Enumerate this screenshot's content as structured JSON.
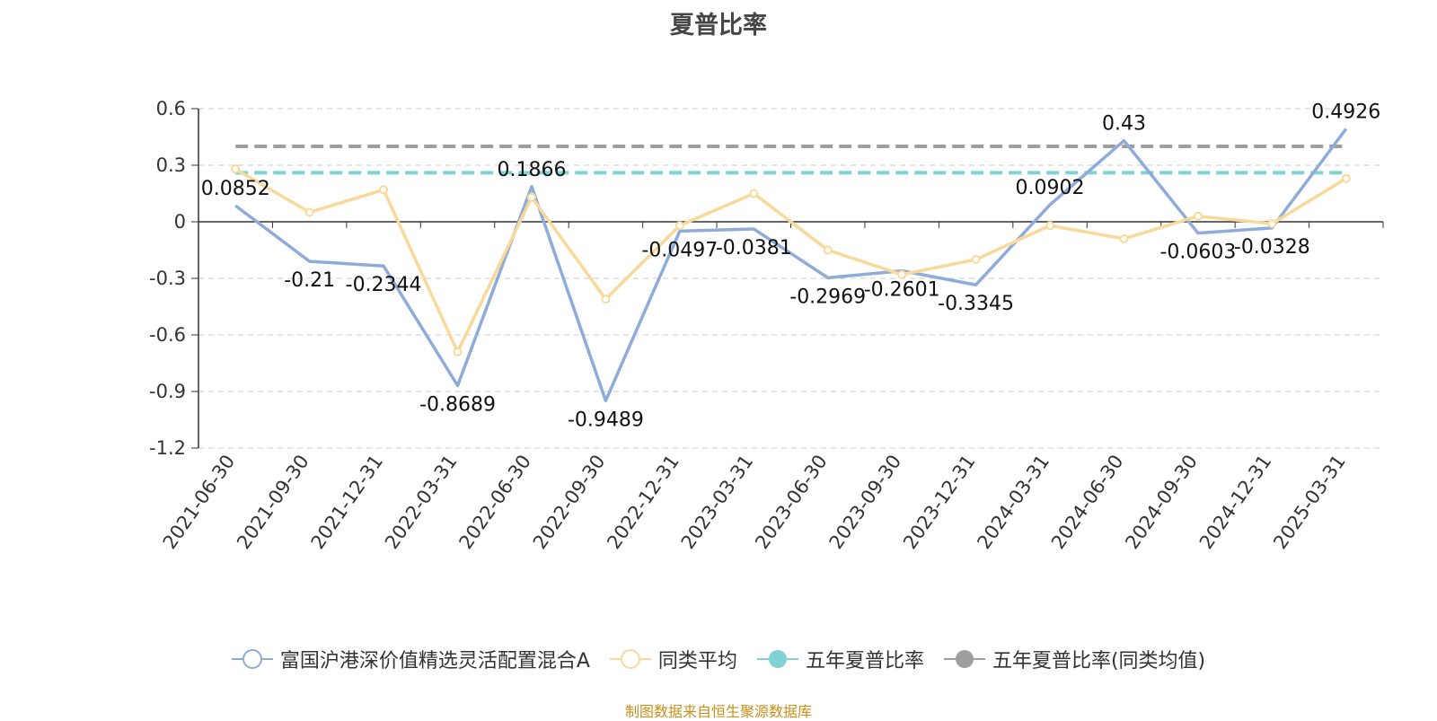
{
  "chart_data": {
    "type": "line",
    "title": "夏普比率",
    "categories": [
      "2021-06-30",
      "2021-09-30",
      "2021-12-31",
      "2022-03-31",
      "2022-06-30",
      "2022-09-30",
      "2022-12-31",
      "2023-03-31",
      "2023-06-30",
      "2023-09-30",
      "2023-12-31",
      "2024-03-31",
      "2024-06-30",
      "2024-09-30",
      "2024-12-31",
      "2025-03-31"
    ],
    "y_ticks": [
      "0.6",
      "0.3",
      "0",
      "-0.3",
      "-0.6",
      "-0.9",
      "-1.2"
    ],
    "ylim": [
      -1.2,
      0.6
    ],
    "grid": true,
    "legend_position": "bottom",
    "series": [
      {
        "name": "富国沪港深价值精选灵活配置混合A",
        "color": "#8eacd9",
        "values": [
          0.0852,
          -0.21,
          -0.2344,
          -0.8689,
          0.1866,
          -0.9489,
          -0.0497,
          -0.0381,
          -0.2969,
          -0.2601,
          -0.3345,
          0.0902,
          0.43,
          -0.0603,
          -0.0328,
          0.4926
        ],
        "labels": [
          "0.0852",
          "-0.21",
          "-0.2344",
          "-0.8689",
          "0.1866",
          "-0.9489",
          "-0.0497",
          "-0.0381",
          "-0.2969",
          "-0.2601",
          "-0.3345",
          "0.0902",
          "0.43",
          "-0.0603",
          "-0.0328",
          "0.4926"
        ]
      },
      {
        "name": "同类平均",
        "color": "#f9d99a",
        "values": [
          0.28,
          0.05,
          0.17,
          -0.69,
          0.13,
          -0.41,
          -0.02,
          0.15,
          -0.15,
          -0.28,
          -0.2,
          -0.02,
          -0.09,
          0.03,
          -0.01,
          0.23
        ]
      },
      {
        "name": "五年夏普比率",
        "color": "#7fd3d3",
        "dashed": true,
        "constant": 0.26
      },
      {
        "name": "五年夏普比率(同类均值)",
        "color": "#9e9e9e",
        "dashed": true,
        "constant": 0.4
      }
    ]
  },
  "source_note": "制图数据来自恒生聚源数据库"
}
